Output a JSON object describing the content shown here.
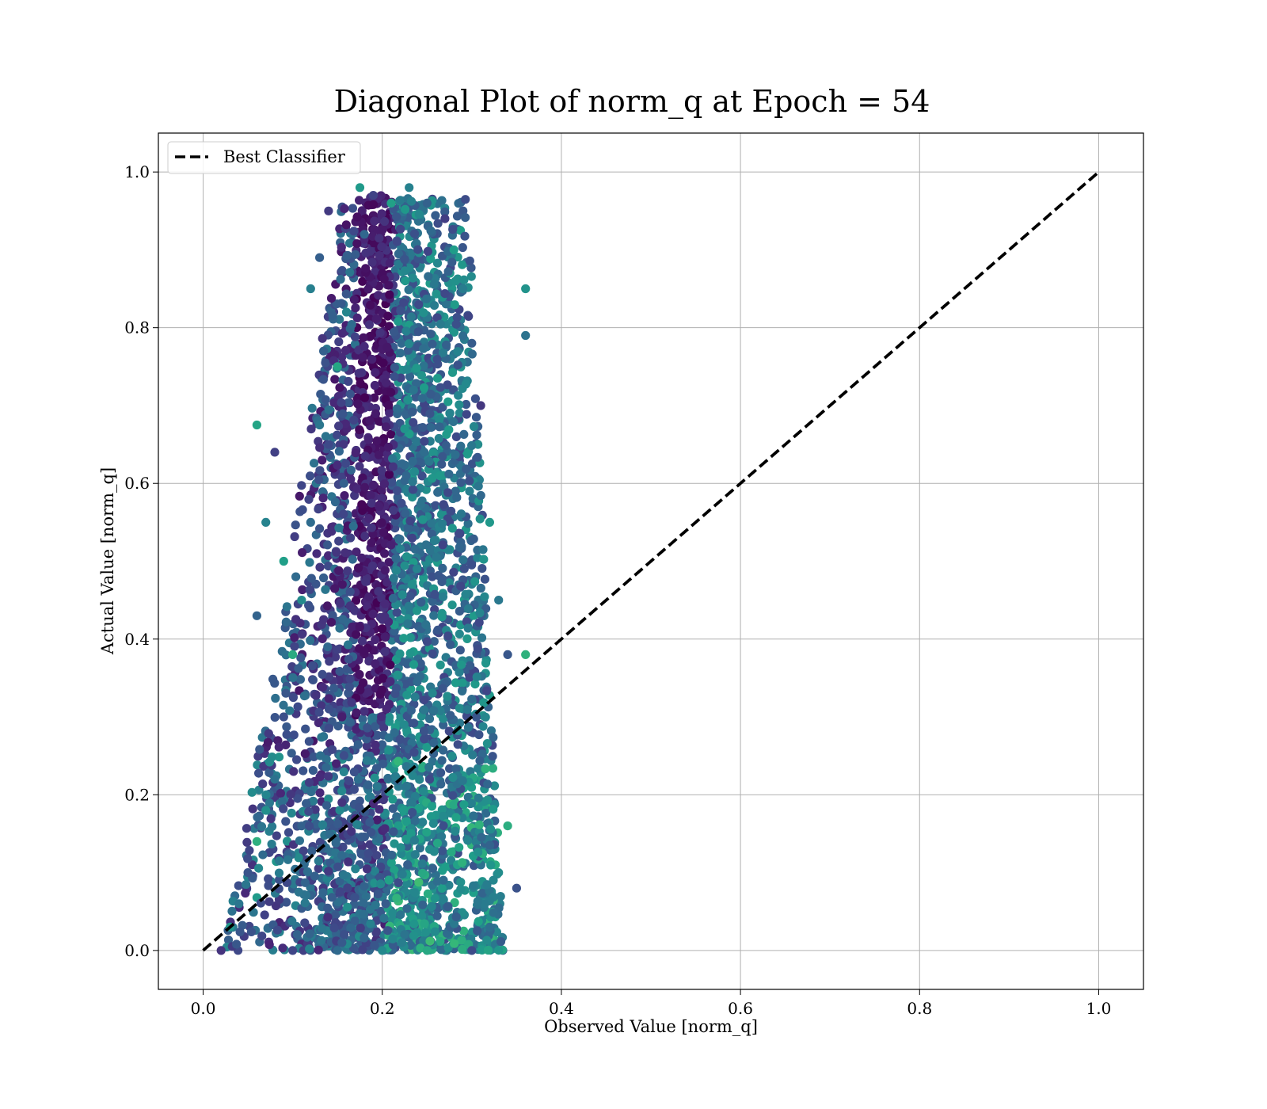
{
  "chart_data": {
    "type": "scatter",
    "title": "Diagonal Plot of norm_q at Epoch = 54",
    "xlabel": "Observed Value [norm_q]",
    "ylabel": "Actual Value [norm_q]",
    "xlim": [
      -0.05,
      1.05
    ],
    "ylim": [
      -0.05,
      1.05
    ],
    "xticks": [
      "0.0",
      "0.2",
      "0.4",
      "0.6",
      "0.8",
      "1.0"
    ],
    "yticks": [
      "0.0",
      "0.2",
      "0.4",
      "0.6",
      "0.8",
      "1.0"
    ],
    "grid": true,
    "legend": {
      "placement": "upper-left",
      "entries": [
        "Best Classifier"
      ]
    },
    "colormap": "viridis",
    "series": [
      {
        "name": "Best Classifier",
        "type": "line",
        "style": "dashed",
        "color": "#000000",
        "x": [
          0.0,
          1.0
        ],
        "y": [
          0.0,
          1.0
        ]
      },
      {
        "type": "scatter",
        "points": [
          [
            0.02,
            0.0
          ],
          [
            0.03,
            0.03
          ],
          [
            0.04,
            0.06
          ],
          [
            0.05,
            0.1
          ],
          [
            0.06,
            0.14
          ],
          [
            0.07,
            0.18
          ],
          [
            0.08,
            0.22
          ],
          [
            0.09,
            0.3
          ],
          [
            0.1,
            0.38
          ],
          [
            0.11,
            0.45
          ],
          [
            0.12,
            0.55
          ],
          [
            0.14,
            0.65
          ],
          [
            0.15,
            0.75
          ],
          [
            0.16,
            0.82
          ],
          [
            0.18,
            0.92
          ],
          [
            0.19,
            0.97
          ],
          [
            0.21,
            0.96
          ],
          [
            0.23,
            0.98
          ],
          [
            0.25,
            0.96
          ],
          [
            0.27,
            0.94
          ],
          [
            0.28,
            0.9
          ],
          [
            0.29,
            0.85
          ],
          [
            0.3,
            0.78
          ],
          [
            0.31,
            0.7
          ],
          [
            0.32,
            0.55
          ],
          [
            0.33,
            0.45
          ],
          [
            0.34,
            0.38
          ],
          [
            0.36,
            0.38
          ],
          [
            0.36,
            0.85
          ],
          [
            0.36,
            0.79
          ],
          [
            0.35,
            0.08
          ],
          [
            0.34,
            0.16
          ],
          [
            0.33,
            0.1
          ],
          [
            0.32,
            0.03
          ],
          [
            0.3,
            0.0
          ],
          [
            0.25,
            0.0
          ],
          [
            0.2,
            0.0
          ],
          [
            0.15,
            0.0
          ],
          [
            0.1,
            0.0
          ],
          [
            0.06,
            0.675
          ],
          [
            0.07,
            0.55
          ],
          [
            0.06,
            0.43
          ],
          [
            0.08,
            0.64
          ],
          [
            0.09,
            0.5
          ],
          [
            0.12,
            0.85
          ],
          [
            0.13,
            0.89
          ],
          [
            0.14,
            0.95
          ],
          [
            0.175,
            0.98
          ],
          [
            0.085,
            0.115
          ],
          [
            0.155,
            0.01
          ],
          [
            0.155,
            0.19
          ],
          [
            0.225,
            0.67
          ],
          [
            0.235,
            0.72
          ]
        ]
      }
    ]
  }
}
